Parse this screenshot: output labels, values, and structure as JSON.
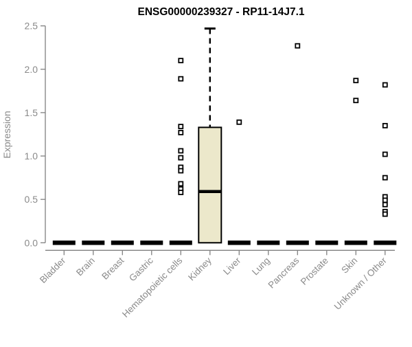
{
  "chart_data": {
    "type": "boxplot",
    "title": "ENSG00000239327 - RP11-14J7.1",
    "ylabel": "Expression",
    "xlabel": "",
    "ylim": [
      0,
      2.5
    ],
    "ytick_labels": [
      "0.0",
      "0.5",
      "1.0",
      "1.5",
      "2.0",
      "2.5"
    ],
    "grid": false,
    "legend": null,
    "categories": [
      "Bladder",
      "Brain",
      "Breast",
      "Gastric",
      "Hematopoietic cells",
      "Kidney",
      "Liver",
      "Lung",
      "Pancreas",
      "Prostate",
      "Skin",
      "Unknown / Other"
    ],
    "boxes": [
      {
        "min": 0,
        "q1": 0,
        "median": 0,
        "q3": 0,
        "max": 0,
        "outliers": []
      },
      {
        "min": 0,
        "q1": 0,
        "median": 0,
        "q3": 0,
        "max": 0,
        "outliers": []
      },
      {
        "min": 0,
        "q1": 0,
        "median": 0,
        "q3": 0,
        "max": 0,
        "outliers": []
      },
      {
        "min": 0,
        "q1": 0,
        "median": 0,
        "q3": 0,
        "max": 0,
        "outliers": []
      },
      {
        "min": 0,
        "q1": 0,
        "median": 0,
        "q3": 0,
        "max": 0,
        "outliers": [
          2.1,
          1.89,
          1.34,
          1.27,
          1.06,
          0.98,
          0.87,
          0.83,
          0.68,
          0.62,
          0.58
        ]
      },
      {
        "min": 0,
        "q1": 0,
        "median": 0.59,
        "q3": 1.33,
        "max": 2.47,
        "outliers": []
      },
      {
        "min": 0,
        "q1": 0,
        "median": 0,
        "q3": 0,
        "max": 0,
        "outliers": [
          1.39
        ]
      },
      {
        "min": 0,
        "q1": 0,
        "median": 0,
        "q3": 0,
        "max": 0,
        "outliers": []
      },
      {
        "min": 0,
        "q1": 0,
        "median": 0,
        "q3": 0,
        "max": 0,
        "outliers": [
          2.27
        ]
      },
      {
        "min": 0,
        "q1": 0,
        "median": 0,
        "q3": 0,
        "max": 0,
        "outliers": []
      },
      {
        "min": 0,
        "q1": 0,
        "median": 0,
        "q3": 0,
        "max": 0,
        "outliers": [
          1.87,
          1.64
        ]
      },
      {
        "min": 0,
        "q1": 0,
        "median": 0,
        "q3": 0,
        "max": 0,
        "outliers": [
          1.82,
          1.35,
          1.02,
          0.75,
          0.53,
          0.49,
          0.44,
          0.36,
          0.33
        ]
      }
    ],
    "colors": {
      "background": "#ffffff",
      "box_fill": "#ece8cb",
      "box_stroke": "#000000",
      "median": "#000000",
      "whisker": "#000000",
      "outlier_fill": "#ffffff",
      "outlier_stroke": "#000000",
      "axis": "#7f7f7f",
      "tick_label": "#8a8a8a",
      "title": "#000000"
    }
  }
}
